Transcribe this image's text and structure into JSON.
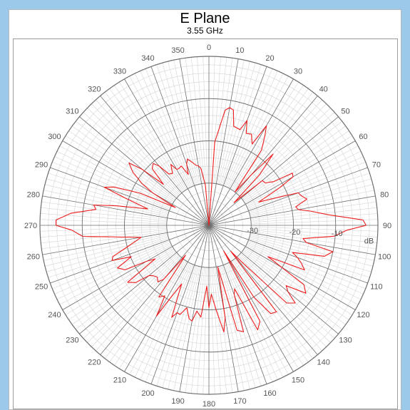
{
  "chart_data": {
    "type": "polar-line",
    "title": "E Plane",
    "subtitle": "3.55 GHz",
    "angle_unit": "deg",
    "angle_ticks": [
      0,
      10,
      20,
      30,
      40,
      50,
      60,
      70,
      80,
      90,
      100,
      110,
      120,
      130,
      140,
      150,
      160,
      170,
      180,
      190,
      200,
      210,
      220,
      230,
      240,
      250,
      260,
      270,
      280,
      290,
      300,
      310,
      320,
      330,
      340,
      350
    ],
    "radial_ticks": [
      -30,
      -20,
      -10
    ],
    "radial_unit": "dB",
    "radial_range": [
      -40,
      0
    ],
    "grid": true,
    "colors": {
      "trace": "#ee1c1c",
      "major_grid": "#6e6e6e",
      "minor_grid": "#d4d4d4",
      "background": "#9cc8ea"
    },
    "series": [
      {
        "angles": [
          0,
          4,
          8,
          10,
          12,
          14,
          18,
          20,
          22,
          25,
          28,
          30,
          32,
          35,
          38,
          40,
          42,
          45,
          48,
          50,
          53,
          56,
          58,
          60,
          62,
          65,
          68,
          70,
          72,
          75,
          78,
          80,
          82,
          85,
          88,
          90,
          92,
          95,
          98,
          100,
          102,
          105,
          108,
          110,
          112,
          115,
          118,
          120,
          122,
          125,
          128,
          130,
          132,
          135,
          138,
          140,
          142,
          145,
          148,
          150,
          152,
          155,
          158,
          160,
          162,
          165,
          168,
          170,
          172,
          175,
          178,
          180,
          182,
          185,
          188,
          190,
          192,
          195,
          198,
          200,
          202,
          205,
          208,
          210,
          212,
          215,
          218,
          220,
          222,
          225,
          228,
          230,
          232,
          235,
          238,
          240,
          242,
          245,
          248,
          250,
          252,
          255,
          258,
          260,
          262,
          265,
          268,
          270,
          272,
          275,
          278,
          280,
          282,
          285,
          288,
          290,
          292,
          295,
          298,
          300,
          302,
          305,
          308,
          310,
          312,
          315,
          318,
          320,
          322,
          325,
          328,
          330,
          332,
          335,
          338,
          340,
          342,
          345,
          348,
          350,
          352,
          355,
          358
        ],
        "values": [
          -40,
          -20.3,
          -12.5,
          -11.7,
          -12.1,
          -15.8,
          -16.2,
          -13.6,
          -16.5,
          -16.2,
          -18.2,
          -12.8,
          -15.0,
          -18.3,
          -30.0,
          -24.5,
          -17.3,
          -23.0,
          -32.0,
          -23.5,
          -23.3,
          -21.5,
          -16.7,
          -17.0,
          -21.0,
          -27.0,
          -22.3,
          -17.5,
          -17.1,
          -16.0,
          -19.0,
          -18.5,
          -15.8,
          -11.5,
          -3.5,
          -2.8,
          -7.3,
          -10.3,
          -17.5,
          -16.6,
          -10.0,
          -11.7,
          -19.2,
          -17.7,
          -16.5,
          -15.0,
          -24.2,
          -20.0,
          -13.5,
          -12.0,
          -16.8,
          -15.6,
          -12.5,
          -14.0,
          -28.0,
          -32.0,
          -14.0,
          -14.5,
          -20.0,
          -33.0,
          -14.3,
          -12.7,
          -23.8,
          -22.5,
          -13.5,
          -14.3,
          -30.0,
          -17.8,
          -14.5,
          -19.7,
          -23.7,
          -20.5,
          -25.6,
          -18.2,
          -19.5,
          -17.0,
          -17.4,
          -19.8,
          -17.8,
          -18.0,
          -16.5,
          -24.7,
          -20.4,
          -15.2,
          -20.3,
          -19.3,
          -31.0,
          -23.3,
          -22.0,
          -22.7,
          -22.2,
          -21.5,
          -18.0,
          -16.5,
          -25.0,
          -23.0,
          -17.6,
          -16.1,
          -20.2,
          -15.6,
          -16.1,
          -19.8,
          -22.4,
          -23.7,
          -20.0,
          -10.0,
          -7.5,
          -3.8,
          -3.8,
          -7.2,
          -13.0,
          -12.3,
          -17.8,
          -25.0,
          -19.3,
          -13.6,
          -15.8,
          -22.0,
          -31.0,
          -24.6,
          -21.3,
          -18.0,
          -16.0,
          -19.3,
          -25.5,
          -21.0,
          -20.3,
          -21.7,
          -24.6,
          -25.0,
          -23.0,
          -24.7,
          -24.8,
          -24.5,
          -27.0,
          -24.6,
          -23.5,
          -24.5,
          -25.5,
          -25.7,
          -26.4,
          -30.5,
          -40
        ]
      }
    ]
  },
  "ui": {
    "title": "E Plane",
    "subtitle": "3.55 GHz",
    "radial_unit_label": "dB"
  }
}
